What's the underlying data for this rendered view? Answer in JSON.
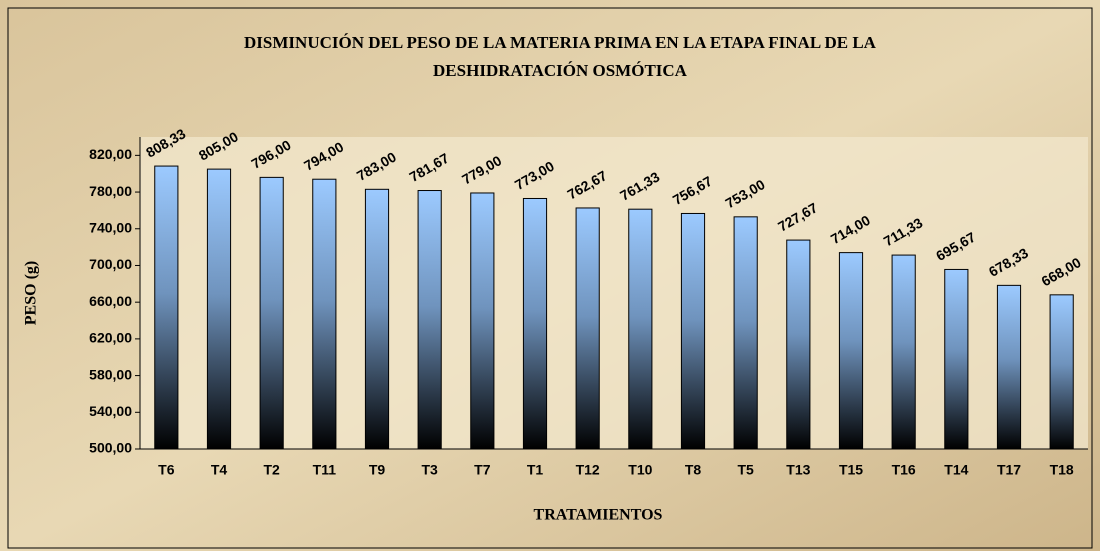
{
  "chart_data": {
    "type": "bar",
    "title": [
      "DISMINUCIÓN DEL PESO DE LA MATERIA PRIMA EN LA ETAPA FINAL DE LA",
      "DESHIDRATACIÓN OSMÓTICA"
    ],
    "x_label": "TRATAMIENTOS",
    "y_label": "PESO (g)",
    "categories": [
      "T6",
      "T4",
      "T2",
      "T11",
      "T9",
      "T3",
      "T7",
      "T1",
      "T12",
      "T10",
      "T8",
      "T5",
      "T13",
      "T15",
      "T16",
      "T14",
      "T17",
      "T18"
    ],
    "values": [
      808.33,
      805,
      796,
      794,
      783,
      781.67,
      779,
      773,
      762.67,
      761.33,
      756.67,
      753,
      727.67,
      714,
      711.33,
      695.67,
      678.33,
      668
    ],
    "value_labels": [
      "808,33",
      "805,00",
      "796,00",
      "794,00",
      "783,00",
      "781,67",
      "779,00",
      "773,00",
      "762,67",
      "761,33",
      "756,67",
      "753,00",
      "727,67",
      "714,00",
      "711,33",
      "695,67",
      "678,33",
      "668,00"
    ],
    "color": "#9ccaff",
    "ylim": [
      500,
      840
    ],
    "yticks": [
      {
        "value": 500,
        "label": "500,00"
      },
      {
        "value": 540,
        "label": "540,00"
      },
      {
        "value": 580,
        "label": "580,00"
      },
      {
        "value": 620,
        "label": "620,00"
      },
      {
        "value": 660,
        "label": "660,00"
      },
      {
        "value": 700,
        "label": "700,00"
      },
      {
        "value": 740,
        "label": "740,00"
      },
      {
        "value": 780,
        "label": "780,00"
      },
      {
        "value": 820,
        "label": "820,00"
      }
    ],
    "grid": false
  }
}
